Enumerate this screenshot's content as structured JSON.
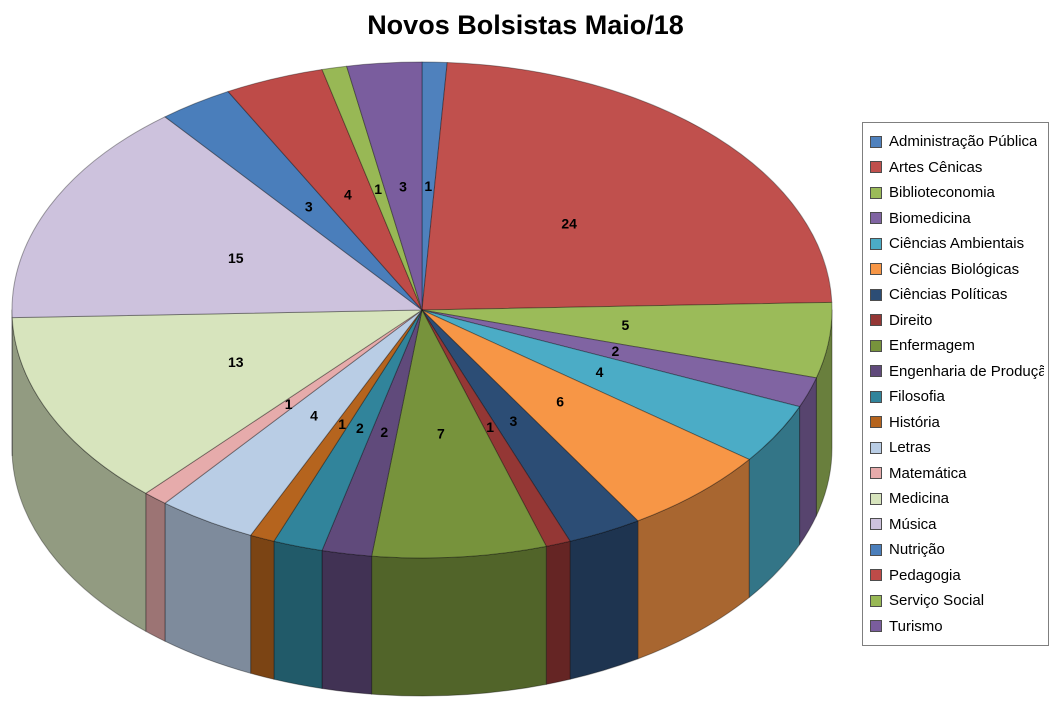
{
  "chart_data": {
    "type": "pie",
    "title": "Novos Bolsistas Maio/18",
    "style": "3d-pie",
    "legend_position": "right",
    "data_labels": "values",
    "label_color": "#000000",
    "background": "#FFFFFF",
    "categories": [
      "Administração Pública",
      "Artes Cênicas",
      "Biblioteconomia",
      "Biomedicina",
      "Ciências Ambientais",
      "Ciências Biológicas",
      "Ciências Políticas",
      "Direito",
      "Enfermagem",
      "Engenharia de Produção",
      "Filosofia",
      "História",
      "Letras",
      "Matemática",
      "Medicina",
      "Música",
      "Nutrição",
      "Pedagogia",
      "Serviço Social",
      "Turismo"
    ],
    "values": [
      1,
      24,
      5,
      2,
      4,
      6,
      3,
      1,
      7,
      2,
      2,
      1,
      4,
      1,
      13,
      15,
      3,
      4,
      1,
      3
    ],
    "colors": [
      "#4F81BD",
      "#C0504D",
      "#9BBB59",
      "#8064A2",
      "#4BACC6",
      "#F79646",
      "#2C4D75",
      "#943735",
      "#77933C",
      "#604A7B",
      "#31849B",
      "#B5641E",
      "#B9CDE5",
      "#E6ABAB",
      "#D7E4BD",
      "#CDC2DD",
      "#4A7EBB",
      "#BE4B48",
      "#98B855",
      "#7A5D9E"
    ]
  }
}
